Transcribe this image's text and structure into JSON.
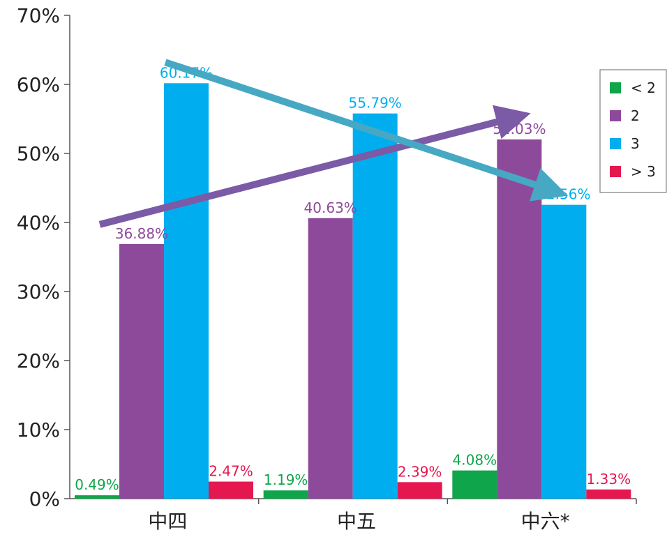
{
  "chart_data": {
    "type": "bar",
    "title": "",
    "xlabel": "",
    "ylabel": "",
    "categories": [
      "中四",
      "中五",
      "中六*"
    ],
    "ylim": [
      0,
      70
    ],
    "ytick_values": [
      0,
      10,
      20,
      30,
      40,
      50,
      60,
      70
    ],
    "ytick_labels": [
      "0%",
      "10%",
      "20%",
      "30%",
      "40%",
      "50%",
      "60%",
      "70%"
    ],
    "grid": false,
    "legend_position": "right",
    "series": [
      {
        "name": "< 2",
        "color": "#0fa54a",
        "values": [
          0.49,
          1.19,
          4.08
        ],
        "labels": [
          "0.49%",
          "1.19%",
          "4.08%"
        ]
      },
      {
        "name": "2",
        "color": "#8e4a9a",
        "values": [
          36.88,
          40.63,
          52.03
        ],
        "labels": [
          "36.88%",
          "40.63%",
          "52.03%"
        ]
      },
      {
        "name": "3",
        "color": "#00aeef",
        "values": [
          60.17,
          55.79,
          42.56
        ],
        "labels": [
          "60.17%",
          "55.79%",
          "42.56%"
        ]
      },
      {
        "name": "> 3",
        "color": "#e5174f",
        "values": [
          2.47,
          2.39,
          1.33
        ],
        "labels": [
          "2.47%",
          "2.39%",
          "1.33%"
        ]
      }
    ],
    "annotations": [
      {
        "type": "arrow",
        "series": "2",
        "from_category": "中四",
        "to_category": "中六*",
        "color": "#7b5aa6"
      },
      {
        "type": "arrow",
        "series": "3",
        "from_category": "中四",
        "to_category": "中六*",
        "color": "#47a8c4"
      }
    ]
  }
}
